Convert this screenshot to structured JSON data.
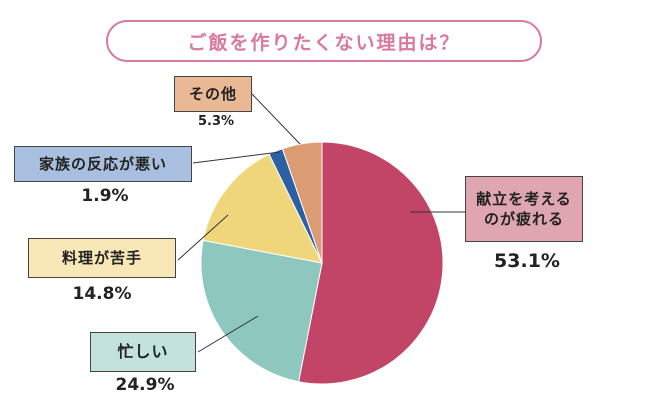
{
  "title": "ご飯を作りたくない理由は？",
  "colors": {
    "title": "#d97a9a",
    "slices": [
      "#c24568",
      "#8ec7bd",
      "#f0d67b",
      "#2d5fa5",
      "#db9c74"
    ],
    "label_boxes": [
      "#dfa6b2",
      "#c3e2dd",
      "#f8e8b7",
      "#a8bfdf",
      "#e9b895"
    ]
  },
  "chart_data": {
    "type": "pie",
    "start": "12 o'clock",
    "direction": "clockwise",
    "categories": [
      "献立を考えるのが疲れる",
      "忙しい",
      "料理が苦手",
      "家族の反応が悪い",
      "その他"
    ],
    "values": [
      53.1,
      24.9,
      14.8,
      1.9,
      5.3
    ],
    "value_labels": [
      "53.1%",
      "24.9%",
      "14.8%",
      "1.9%",
      "5.3%"
    ],
    "label_lines": [
      [
        "献立を考える",
        "のが疲れる"
      ],
      [
        "忙しい"
      ],
      [
        "料理が苦手"
      ],
      [
        "家族の反応が悪い"
      ],
      [
        "その他"
      ]
    ]
  }
}
